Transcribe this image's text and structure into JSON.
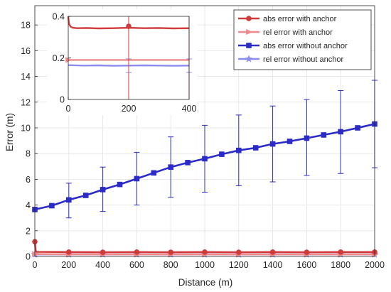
{
  "chart_data": [
    {
      "type": "line",
      "title": "",
      "xlabel": "Distance (m)",
      "ylabel": "Error (m)",
      "xlim": [
        0,
        2000
      ],
      "ylim": [
        0,
        19.5
      ],
      "xticks": [
        0,
        200,
        400,
        600,
        800,
        1000,
        1200,
        1400,
        1600,
        1800,
        2000
      ],
      "xtick_labels": [
        "0",
        "200",
        "400",
        "600",
        "800",
        "1000",
        "1200",
        "1400",
        "1600",
        "1800",
        "2000"
      ],
      "yticks": [
        0,
        2,
        4,
        6,
        8,
        10,
        12,
        14,
        16,
        18
      ],
      "ytick_labels": [
        "0",
        "2",
        "4",
        "6",
        "8",
        "10",
        "12",
        "14",
        "16",
        "18"
      ],
      "grid": true,
      "legend_position": "top-right",
      "series": [
        {
          "name": "abs error with anchor",
          "color": "#d03a3a",
          "marker": "circle",
          "x": [
            0,
            5,
            10,
            200,
            400,
            600,
            800,
            1000,
            1200,
            1400,
            1600,
            1800,
            2000
          ],
          "y": [
            1.15,
            0.45,
            0.36,
            0.34,
            0.33,
            0.34,
            0.33,
            0.34,
            0.33,
            0.34,
            0.33,
            0.34,
            0.34
          ],
          "markers_x": [
            0,
            200,
            400,
            600,
            800,
            1000,
            1200,
            1400,
            1600,
            1800,
            2000
          ],
          "markers_y": [
            1.15,
            0.34,
            0.33,
            0.34,
            0.33,
            0.34,
            0.33,
            0.34,
            0.33,
            0.34,
            0.34
          ]
        },
        {
          "name": "rel error with anchor",
          "color": "#ef8a8a",
          "marker": "triangle-right",
          "x": [
            0,
            200,
            400,
            600,
            800,
            1000,
            1200,
            1400,
            1600,
            1800,
            2000
          ],
          "y": [
            0.19,
            0.16,
            0.16,
            0.16,
            0.16,
            0.16,
            0.16,
            0.16,
            0.16,
            0.16,
            0.16
          ]
        },
        {
          "name": "abs error without anchor",
          "color": "#2b2bc8",
          "marker": "square",
          "x": [
            0,
            100,
            200,
            300,
            400,
            500,
            600,
            700,
            800,
            900,
            1000,
            1100,
            1200,
            1300,
            1400,
            1500,
            1600,
            1700,
            1800,
            1900,
            2000
          ],
          "y": [
            3.65,
            3.95,
            4.4,
            4.75,
            5.2,
            5.6,
            6.05,
            6.5,
            6.95,
            7.3,
            7.6,
            7.95,
            8.25,
            8.45,
            8.75,
            8.95,
            9.2,
            9.45,
            9.7,
            10.0,
            10.3
          ],
          "error_x": [
            200,
            400,
            600,
            800,
            1000,
            1200,
            1400,
            1600,
            1800,
            2000
          ],
          "error_mean": [
            4.4,
            5.2,
            6.05,
            6.95,
            7.6,
            8.25,
            8.75,
            9.2,
            9.7,
            10.3
          ],
          "error_low": [
            3.0,
            3.5,
            4.0,
            4.6,
            5.0,
            5.5,
            5.8,
            6.3,
            6.45,
            6.9
          ],
          "error_high": [
            5.7,
            6.95,
            8.1,
            9.3,
            10.2,
            11.0,
            11.7,
            12.2,
            12.9,
            13.7
          ]
        },
        {
          "name": "rel error without anchor",
          "color": "#8c8cf0",
          "marker": "star",
          "x": [
            0,
            200,
            400,
            600,
            800,
            1000,
            1200,
            1400,
            1600,
            1800,
            2000
          ],
          "y": [
            0.16,
            0.16,
            0.16,
            0.16,
            0.16,
            0.16,
            0.16,
            0.16,
            0.16,
            0.16,
            0.16
          ]
        }
      ]
    },
    {
      "type": "line",
      "title": "",
      "position": "inset",
      "xlim": [
        0,
        400
      ],
      "ylim": [
        0,
        0.4
      ],
      "xticks": [
        0,
        200,
        400
      ],
      "xtick_labels": [
        "0",
        "200",
        "400"
      ],
      "yticks": [
        0,
        0.2,
        0.4
      ],
      "ytick_labels": [
        "0",
        "0.2",
        "0.4"
      ],
      "grid": false,
      "series": [
        {
          "name": "abs error with anchor",
          "color": "#d03a3a",
          "x": [
            0,
            2,
            4,
            8,
            15,
            30,
            60,
            100,
            150,
            200,
            250,
            300,
            350,
            400
          ],
          "y": [
            0.4,
            0.37,
            0.36,
            0.35,
            0.345,
            0.343,
            0.344,
            0.342,
            0.343,
            0.345,
            0.343,
            0.344,
            0.342,
            0.343
          ],
          "markers_x": [
            200
          ],
          "markers_y": [
            0.352
          ]
        },
        {
          "name": "rel error with anchor",
          "color": "#ef8a8a",
          "x": [
            0,
            400
          ],
          "y": [
            0.19,
            0.19
          ],
          "markers_x": [
            0
          ],
          "markers_y": [
            0.19
          ]
        },
        {
          "name": "rel error without anchor",
          "color": "#8c8cf0",
          "x": [
            0,
            50,
            100,
            150,
            200,
            250,
            300,
            350,
            400
          ],
          "y": [
            0.165,
            0.163,
            0.164,
            0.162,
            0.163,
            0.164,
            0.163,
            0.162,
            0.163
          ],
          "error_x": [
            200,
            400
          ],
          "error_low": [
            0.13,
            0.13
          ],
          "error_high": [
            0.195,
            0.195
          ]
        }
      ]
    }
  ]
}
